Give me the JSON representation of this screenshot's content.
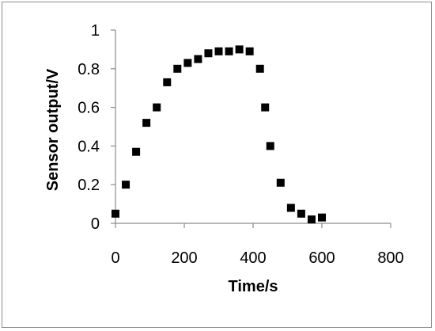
{
  "chart_data": {
    "type": "scatter",
    "title": "",
    "xlabel": "Time/s",
    "ylabel": "Sensor output/V",
    "xlim": [
      0,
      800
    ],
    "ylim": [
      0,
      1
    ],
    "x_ticks": [
      0,
      200,
      400,
      600,
      800
    ],
    "y_ticks": [
      0,
      0.2,
      0.4,
      0.6,
      0.8,
      1
    ],
    "x_tick_labels": [
      "0",
      "200",
      "400",
      "600",
      "800"
    ],
    "y_tick_labels": [
      "0",
      "0.2",
      "0.4",
      "0.6",
      "0.8",
      "1"
    ],
    "grid": false,
    "legend": "none",
    "marker": "square",
    "marker_color": "#000000",
    "series": [
      {
        "x": [
          0,
          30,
          60,
          90,
          120,
          150,
          180,
          210,
          240,
          270,
          300,
          330,
          360,
          390,
          420,
          435,
          450,
          480,
          510,
          540,
          570,
          600
        ],
        "y": [
          0.05,
          0.2,
          0.37,
          0.52,
          0.6,
          0.73,
          0.8,
          0.83,
          0.85,
          0.88,
          0.89,
          0.89,
          0.9,
          0.89,
          0.8,
          0.6,
          0.4,
          0.21,
          0.08,
          0.05,
          0.02,
          0.03
        ]
      }
    ]
  }
}
